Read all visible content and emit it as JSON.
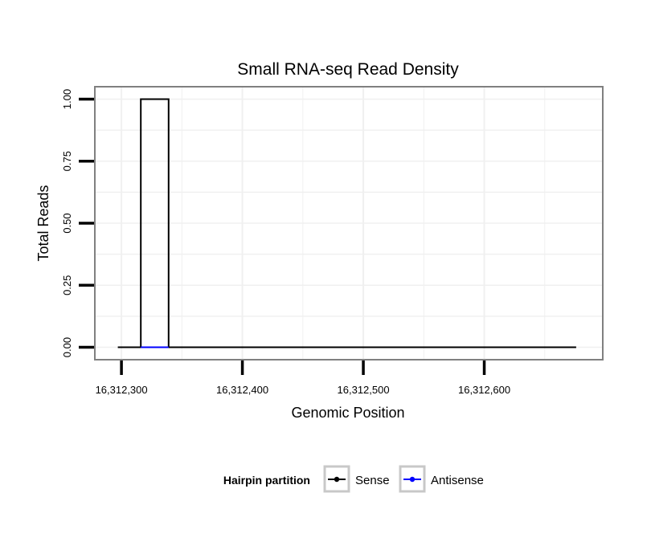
{
  "chart_data": {
    "type": "line",
    "title": "Small RNA-seq Read Density",
    "xlabel": "Genomic Position",
    "ylabel": "Total Reads",
    "xlim": [
      16312278,
      16312698
    ],
    "ylim": [
      -0.05,
      1.05
    ],
    "x_ticks": [
      16312300,
      16312400,
      16312500,
      16312600
    ],
    "x_tick_labels": [
      "16,312,300",
      "16,312,400",
      "16,312,500",
      "16,312,600"
    ],
    "y_ticks": [
      0,
      0.25,
      0.5,
      0.75,
      1.0
    ],
    "y_tick_labels": [
      "0.00",
      "0.25",
      "0.50",
      "0.75",
      "1.00"
    ],
    "grid": true,
    "legend": {
      "title": "Hairpin partition",
      "position": "bottom",
      "entries": [
        "Sense",
        "Antisense"
      ]
    },
    "series": [
      {
        "name": "Sense",
        "color": "#000000",
        "x": [
          16312297,
          16312316,
          16312316,
          16312339,
          16312339,
          16312676
        ],
        "y": [
          0,
          0,
          1,
          1,
          0,
          0
        ]
      },
      {
        "name": "Antisense",
        "color": "#0000ff",
        "x": [
          16312316,
          16312339
        ],
        "y": [
          0,
          0
        ]
      }
    ]
  }
}
